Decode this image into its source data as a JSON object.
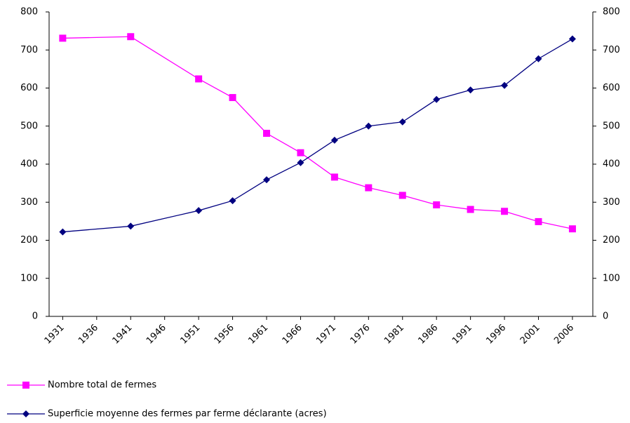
{
  "chart_data": {
    "type": "line",
    "x": [
      1931,
      1941,
      1951,
      1956,
      1961,
      1966,
      1971,
      1976,
      1981,
      1986,
      1991,
      1996,
      2001,
      2006
    ],
    "series": [
      {
        "name": "Nombre total de fermes",
        "color": "#ff00ff",
        "marker": "square",
        "values": [
          731,
          735,
          624,
          575,
          481,
          430,
          366,
          338,
          318,
          293,
          281,
          276,
          249,
          230
        ]
      },
      {
        "name": "Superficie moyenne des fermes par ferme déclarante (acres)",
        "color": "#000080",
        "marker": "diamond",
        "values": [
          222,
          237,
          278,
          304,
          359,
          404,
          463,
          500,
          511,
          570,
          595,
          607,
          677,
          729
        ]
      }
    ],
    "xlim": [
      1929,
      2009
    ],
    "xticks": [
      1931,
      1936,
      1941,
      1946,
      1951,
      1956,
      1961,
      1966,
      1971,
      1976,
      1981,
      1986,
      1991,
      1996,
      2001,
      2006
    ],
    "ylim": [
      0,
      800
    ],
    "yticks": [
      0,
      100,
      200,
      300,
      400,
      500,
      600,
      700,
      800
    ],
    "y2lim": [
      0,
      800
    ],
    "y2ticks": [
      0,
      100,
      200,
      300,
      400,
      500,
      600,
      700,
      800
    ],
    "legend": "bottom"
  }
}
